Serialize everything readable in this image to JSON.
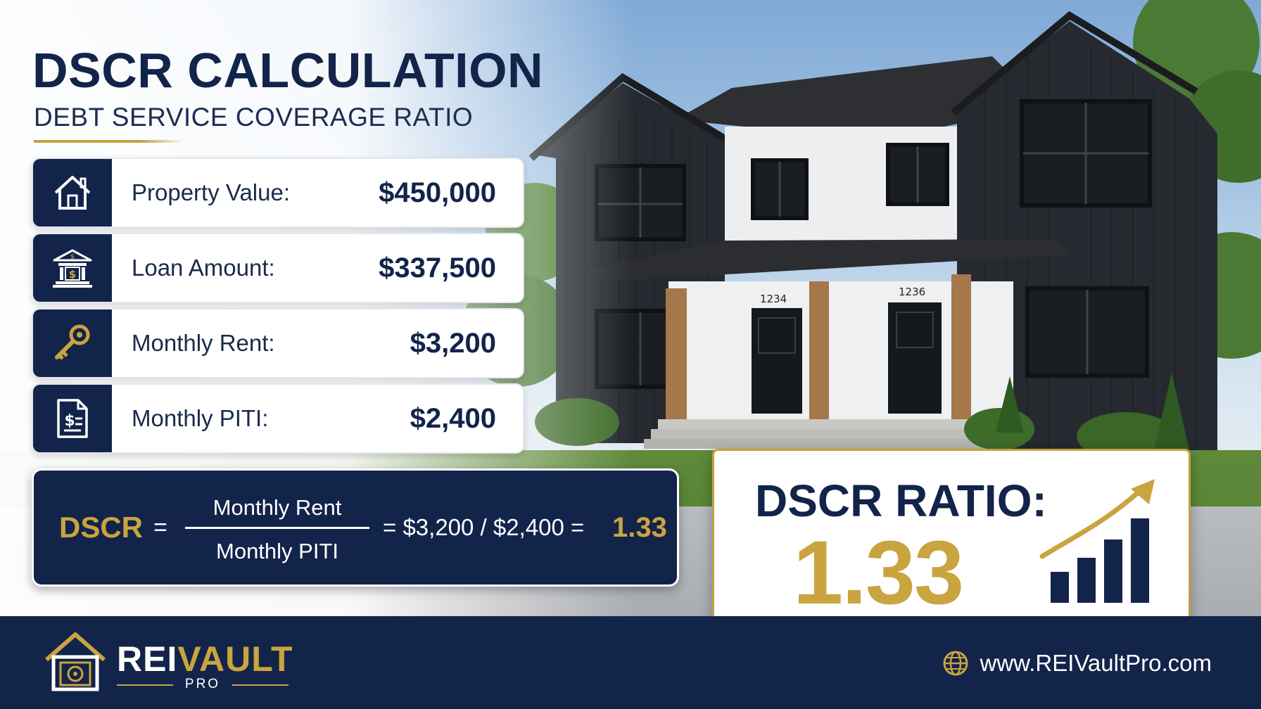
{
  "header": {
    "title": "DSCR CALCULATION",
    "subtitle": "DEBT SERVICE COVERAGE RATIO"
  },
  "metrics": [
    {
      "icon": "house-icon",
      "label": "Property Value:",
      "value": "$450,000"
    },
    {
      "icon": "bank-icon",
      "label": "Loan Amount:",
      "value": "$337,500"
    },
    {
      "icon": "key-icon",
      "label": "Monthly Rent:",
      "value": "$3,200"
    },
    {
      "icon": "document-dollar-icon",
      "label": "Monthly PITI:",
      "value": "$2,400"
    }
  ],
  "formula": {
    "lhs": "DSCR",
    "equals": "=",
    "numerator": "Monthly Rent",
    "denominator": "Monthly PITI",
    "rhs": "=  $3,200 / $2,400  =",
    "result": "1.33"
  },
  "ratio": {
    "label": "DSCR RATIO:",
    "value": "1.33",
    "icon": "growth-chart-icon"
  },
  "footer": {
    "brand_primary": "REI",
    "brand_secondary": "VAULT",
    "brand_sub": "PRO",
    "logo_icon": "vault-house-icon",
    "globe_icon": "globe-icon",
    "website": "www.REIVaultPro.com"
  },
  "house": {
    "unit_left": "1234",
    "unit_right": "1236"
  },
  "colors": {
    "navy": "#13244a",
    "gold": "#c9a43f",
    "white": "#ffffff"
  }
}
